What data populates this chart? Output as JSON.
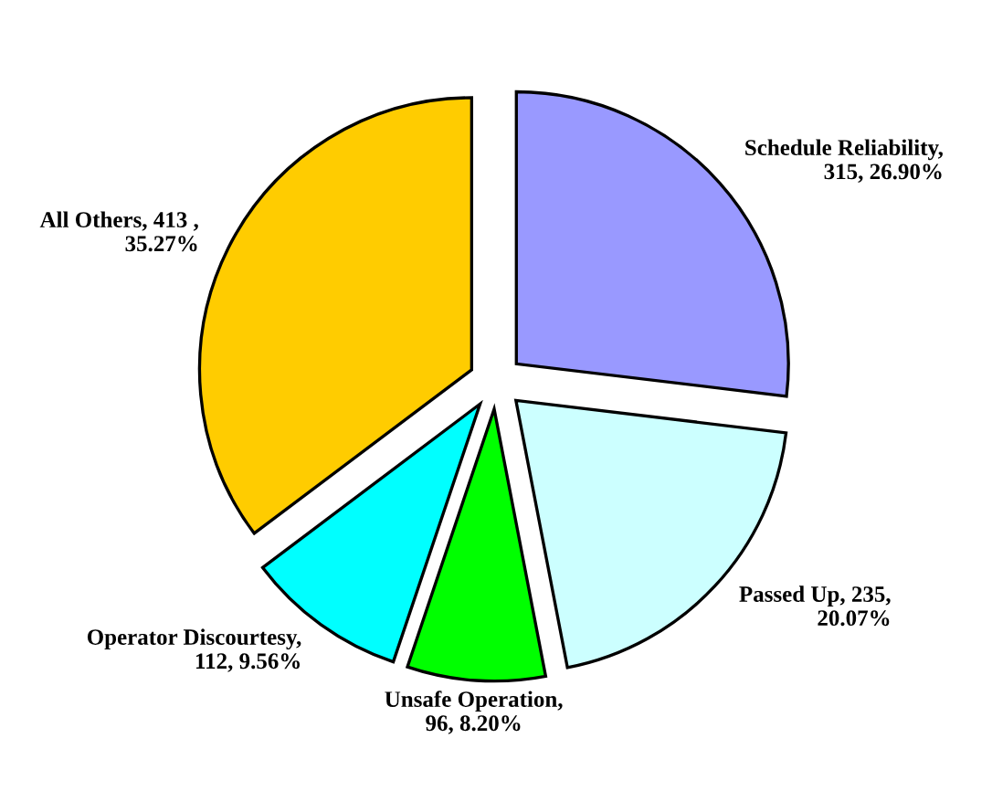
{
  "chart_data": {
    "type": "pie",
    "categories": [
      "Schedule Reliability",
      "Passed Up",
      "Unsafe Operation",
      "Operator Discourtesy",
      "All Others"
    ],
    "values": [
      315,
      235,
      96,
      112,
      413
    ],
    "value_labels": [
      ",\n315, 26.90%",
      ", 235,\n20.07%",
      ",\n96, 8.20%",
      ",\n112, 9.56%",
      ", 413 ,\n35.27%"
    ],
    "colors": [
      "#9999ff",
      "#ccffff",
      "#00ff00",
      "#00ffff",
      "#ffcc00"
    ],
    "legend": false
  }
}
